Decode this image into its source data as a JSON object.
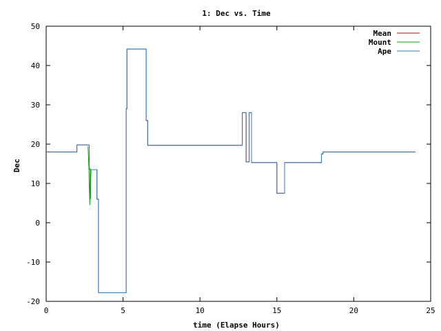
{
  "chart_data": {
    "type": "line",
    "title": "1: Dec vs. Time",
    "xlabel": "time (Elapse Hours)",
    "ylabel": "Dec",
    "xlim": [
      0,
      25
    ],
    "ylim": [
      -20,
      50
    ],
    "xticks": [
      0,
      5,
      10,
      15,
      20,
      25
    ],
    "yticks": [
      -20,
      -10,
      0,
      10,
      20,
      30,
      40,
      50
    ],
    "grid": false,
    "legend_position": "top-right",
    "series": [
      {
        "name": "Mean",
        "color": "#cc0000",
        "x": [
          0,
          2.0,
          2.0,
          2.8,
          2.8,
          3.0,
          3.0,
          3.3,
          3.3,
          3.4,
          3.4,
          5.2,
          5.2,
          5.25,
          5.25,
          6.5,
          6.5,
          6.6,
          6.6,
          12.75,
          12.75,
          13.0,
          13.0,
          13.2,
          13.2,
          13.35,
          13.35,
          13.5,
          13.5,
          15.0,
          15.0,
          15.3,
          15.3,
          15.5,
          15.5,
          15.6,
          15.6,
          17.9,
          17.9,
          18.0,
          18.0,
          24.0
        ],
        "y": [
          18.0,
          18.0,
          19.8,
          19.8,
          13.5,
          13.5,
          13.5,
          13.5,
          6.0,
          6.0,
          -17.8,
          -17.8,
          29.0,
          29.0,
          44.2,
          44.2,
          26.0,
          26.0,
          19.7,
          19.7,
          28.0,
          28.0,
          15.5,
          15.5,
          28.0,
          28.0,
          15.3,
          15.3,
          15.3,
          15.3,
          7.5,
          7.5,
          7.5,
          7.5,
          15.3,
          15.3,
          15.3,
          15.3,
          17.5,
          17.5,
          18.0,
          18.0
        ]
      },
      {
        "name": "Mount",
        "color": "#00aa00",
        "x": [
          2.72,
          2.78,
          2.8,
          2.84,
          2.86,
          2.88,
          2.9,
          2.92,
          2.95
        ],
        "y": [
          19.5,
          14.0,
          9.5,
          4.5,
          14.0,
          6.0,
          11.5,
          13.5,
          13.5
        ]
      },
      {
        "name": "Ape",
        "color": "#2a7fc0",
        "x": [
          0,
          2.0,
          2.0,
          2.8,
          2.8,
          3.0,
          3.0,
          3.3,
          3.3,
          3.4,
          3.4,
          5.2,
          5.2,
          5.25,
          5.25,
          6.5,
          6.5,
          6.6,
          6.6,
          12.75,
          12.75,
          13.0,
          13.0,
          13.2,
          13.2,
          13.35,
          13.35,
          13.5,
          13.5,
          15.0,
          15.0,
          15.3,
          15.3,
          15.5,
          15.5,
          15.6,
          15.6,
          17.9,
          17.9,
          18.0,
          18.0,
          24.0
        ],
        "y": [
          18.0,
          18.0,
          19.8,
          19.8,
          13.5,
          13.5,
          13.5,
          13.5,
          6.0,
          6.0,
          -17.8,
          -17.8,
          29.0,
          29.0,
          44.2,
          44.2,
          26.0,
          26.0,
          19.7,
          19.7,
          28.0,
          28.0,
          15.5,
          15.5,
          28.0,
          28.0,
          15.3,
          15.3,
          15.3,
          15.3,
          7.5,
          7.5,
          7.5,
          7.5,
          15.3,
          15.3,
          15.3,
          15.3,
          17.5,
          17.5,
          18.0,
          18.0
        ]
      }
    ]
  }
}
